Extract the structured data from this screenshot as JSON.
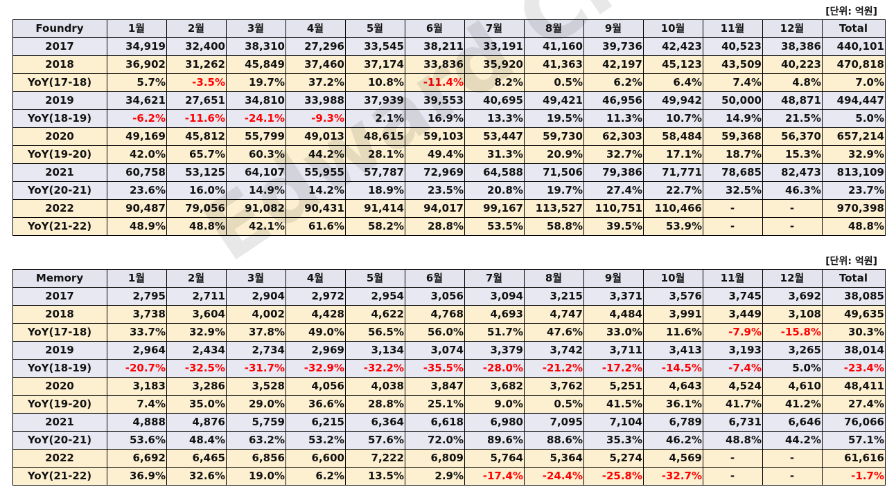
{
  "tables": [
    {
      "unit": "[단위: 억원]",
      "header": [
        "Foundry",
        "1월",
        "2월",
        "3월",
        "4월",
        "5월",
        "6월",
        "7월",
        "8월",
        "9월",
        "10월",
        "11월",
        "12월",
        "Total"
      ],
      "rows": [
        {
          "type": "yr",
          "cells": [
            "2017",
            "34,919",
            "32,400",
            "38,310",
            "27,296",
            "33,545",
            "38,211",
            "33,191",
            "41,160",
            "39,736",
            "42,423",
            "40,523",
            "38,386",
            "440,101"
          ]
        },
        {
          "type": "alt",
          "cells": [
            "2018",
            "36,902",
            "31,262",
            "45,849",
            "37,460",
            "37,174",
            "33,836",
            "35,920",
            "41,363",
            "42,197",
            "45,123",
            "43,509",
            "40,223",
            "470,818"
          ]
        },
        {
          "type": "alt",
          "cells": [
            "YoY(17-18)",
            "5.7%",
            "-3.5%",
            "19.7%",
            "37.2%",
            "10.8%",
            "-11.4%",
            "8.2%",
            "0.5%",
            "6.2%",
            "6.4%",
            "7.4%",
            "4.8%",
            "7.0%"
          ]
        },
        {
          "type": "yr",
          "cells": [
            "2019",
            "34,621",
            "27,651",
            "34,810",
            "33,988",
            "37,939",
            "39,553",
            "40,695",
            "49,421",
            "46,956",
            "49,942",
            "50,000",
            "48,871",
            "494,447"
          ]
        },
        {
          "type": "yr",
          "cells": [
            "YoY(18-19)",
            "-6.2%",
            "-11.6%",
            "-24.1%",
            "-9.3%",
            "2.1%",
            "16.9%",
            "13.3%",
            "19.5%",
            "11.3%",
            "10.7%",
            "14.9%",
            "21.5%",
            "5.0%"
          ]
        },
        {
          "type": "alt",
          "cells": [
            "2020",
            "49,169",
            "45,812",
            "55,799",
            "49,013",
            "48,615",
            "59,103",
            "53,447",
            "59,730",
            "62,303",
            "58,484",
            "59,368",
            "56,370",
            "657,214"
          ]
        },
        {
          "type": "alt",
          "cells": [
            "YoY(19-20)",
            "42.0%",
            "65.7%",
            "60.3%",
            "44.2%",
            "28.1%",
            "49.4%",
            "31.3%",
            "20.9%",
            "32.7%",
            "17.1%",
            "18.7%",
            "15.3%",
            "32.9%"
          ]
        },
        {
          "type": "yr",
          "cells": [
            "2021",
            "60,758",
            "53,125",
            "64,107",
            "55,955",
            "57,787",
            "72,969",
            "64,588",
            "71,506",
            "79,386",
            "71,771",
            "78,685",
            "82,473",
            "813,109"
          ]
        },
        {
          "type": "yr",
          "cells": [
            "YoY(20-21)",
            "23.6%",
            "16.0%",
            "14.9%",
            "14.2%",
            "18.9%",
            "23.5%",
            "20.8%",
            "19.7%",
            "27.4%",
            "22.7%",
            "32.5%",
            "46.3%",
            "23.7%"
          ]
        },
        {
          "type": "alt",
          "cells": [
            "2022",
            "90,487",
            "79,056",
            "91,082",
            "90,431",
            "91,414",
            "94,017",
            "99,167",
            "113,527",
            "110,751",
            "110,466",
            "-",
            "-",
            "970,398"
          ]
        },
        {
          "type": "alt",
          "cells": [
            "YoY(21-22)",
            "48.9%",
            "48.8%",
            "42.1%",
            "61.6%",
            "58.2%",
            "28.8%",
            "53.5%",
            "58.8%",
            "39.5%",
            "53.9%",
            "-",
            "-",
            "48.8%"
          ]
        }
      ]
    },
    {
      "unit": "[단위: 억원]",
      "header": [
        "Memory",
        "1월",
        "2월",
        "3월",
        "4월",
        "5월",
        "6월",
        "7월",
        "8월",
        "9월",
        "10월",
        "11월",
        "12월",
        "Total"
      ],
      "rows": [
        {
          "type": "yr",
          "cells": [
            "2017",
            "2,795",
            "2,711",
            "2,904",
            "2,972",
            "2,954",
            "3,056",
            "3,094",
            "3,215",
            "3,371",
            "3,576",
            "3,745",
            "3,692",
            "38,085"
          ]
        },
        {
          "type": "alt",
          "cells": [
            "2018",
            "3,738",
            "3,604",
            "4,002",
            "4,428",
            "4,622",
            "4,768",
            "4,693",
            "4,747",
            "4,484",
            "3,991",
            "3,449",
            "3,108",
            "49,635"
          ]
        },
        {
          "type": "alt",
          "cells": [
            "YoY(17-18)",
            "33.7%",
            "32.9%",
            "37.8%",
            "49.0%",
            "56.5%",
            "56.0%",
            "51.7%",
            "47.6%",
            "33.0%",
            "11.6%",
            "-7.9%",
            "-15.8%",
            "30.3%"
          ]
        },
        {
          "type": "yr",
          "cells": [
            "2019",
            "2,964",
            "2,434",
            "2,734",
            "2,969",
            "3,134",
            "3,074",
            "3,379",
            "3,742",
            "3,711",
            "3,413",
            "3,193",
            "3,265",
            "38,014"
          ]
        },
        {
          "type": "yr",
          "cells": [
            "YoY(18-19)",
            "-20.7%",
            "-32.5%",
            "-31.7%",
            "-32.9%",
            "-32.2%",
            "-35.5%",
            "-28.0%",
            "-21.2%",
            "-17.2%",
            "-14.5%",
            "-7.4%",
            "5.0%",
            "-23.4%"
          ]
        },
        {
          "type": "alt",
          "cells": [
            "2020",
            "3,183",
            "3,286",
            "3,528",
            "4,056",
            "4,038",
            "3,847",
            "3,682",
            "3,762",
            "5,251",
            "4,643",
            "4,524",
            "4,610",
            "48,411"
          ]
        },
        {
          "type": "alt",
          "cells": [
            "YoY(19-20)",
            "7.4%",
            "35.0%",
            "29.0%",
            "36.6%",
            "28.8%",
            "25.1%",
            "9.0%",
            "0.5%",
            "41.5%",
            "36.1%",
            "41.7%",
            "41.2%",
            "27.4%"
          ]
        },
        {
          "type": "yr",
          "cells": [
            "2021",
            "4,888",
            "4,876",
            "5,759",
            "6,215",
            "6,364",
            "6,618",
            "6,980",
            "7,095",
            "7,104",
            "6,789",
            "6,731",
            "6,646",
            "76,066"
          ]
        },
        {
          "type": "yr",
          "cells": [
            "YoY(20-21)",
            "53.6%",
            "48.4%",
            "63.2%",
            "53.2%",
            "57.6%",
            "72.0%",
            "89.6%",
            "88.6%",
            "35.3%",
            "46.2%",
            "48.8%",
            "44.2%",
            "57.1%"
          ]
        },
        {
          "type": "alt",
          "cells": [
            "2022",
            "6,692",
            "6,465",
            "6,856",
            "6,600",
            "7,222",
            "6,809",
            "5,764",
            "5,364",
            "5,274",
            "4,569",
            "-",
            "-",
            "61,616"
          ]
        },
        {
          "type": "alt",
          "cells": [
            "YoY(21-22)",
            "36.9%",
            "32.6%",
            "19.0%",
            "6.2%",
            "13.5%",
            "2.9%",
            "-17.4%",
            "-24.4%",
            "-25.8%",
            "-32.7%",
            "-",
            "-",
            "-1.7%"
          ]
        }
      ]
    }
  ],
  "watermark": "Edward Choi",
  "colors": {
    "negative": "#ff0000",
    "header_bg": "#e4e4ef",
    "year_bg": "#e8e8f2",
    "alt_bg": "#fdf0d0"
  }
}
